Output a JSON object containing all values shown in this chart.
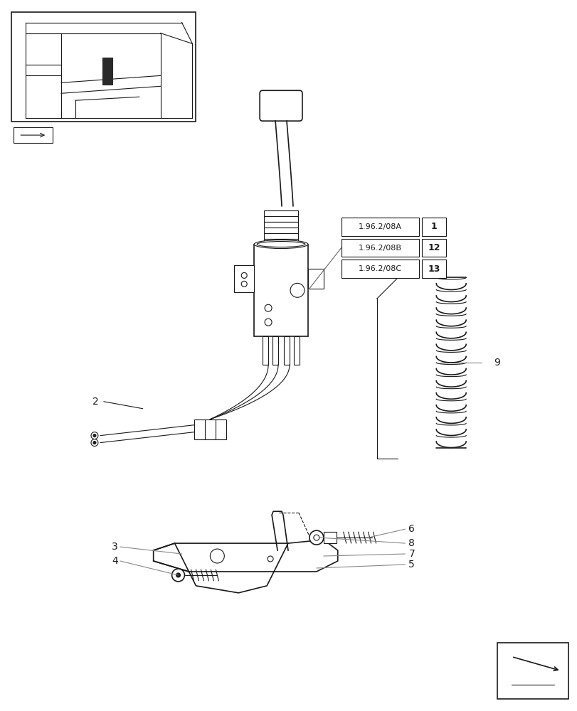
{
  "bg_color": "#ffffff",
  "line_color": "#1a1a1a",
  "fig_width": 8.12,
  "fig_height": 10.0,
  "dpi": 100,
  "ref_boxes": [
    {
      "text": "1.96.2/08A",
      "num": "1"
    },
    {
      "text": "1.96.2/08B",
      "num": "12"
    },
    {
      "text": "1.96.2/08C",
      "num": "13"
    }
  ]
}
